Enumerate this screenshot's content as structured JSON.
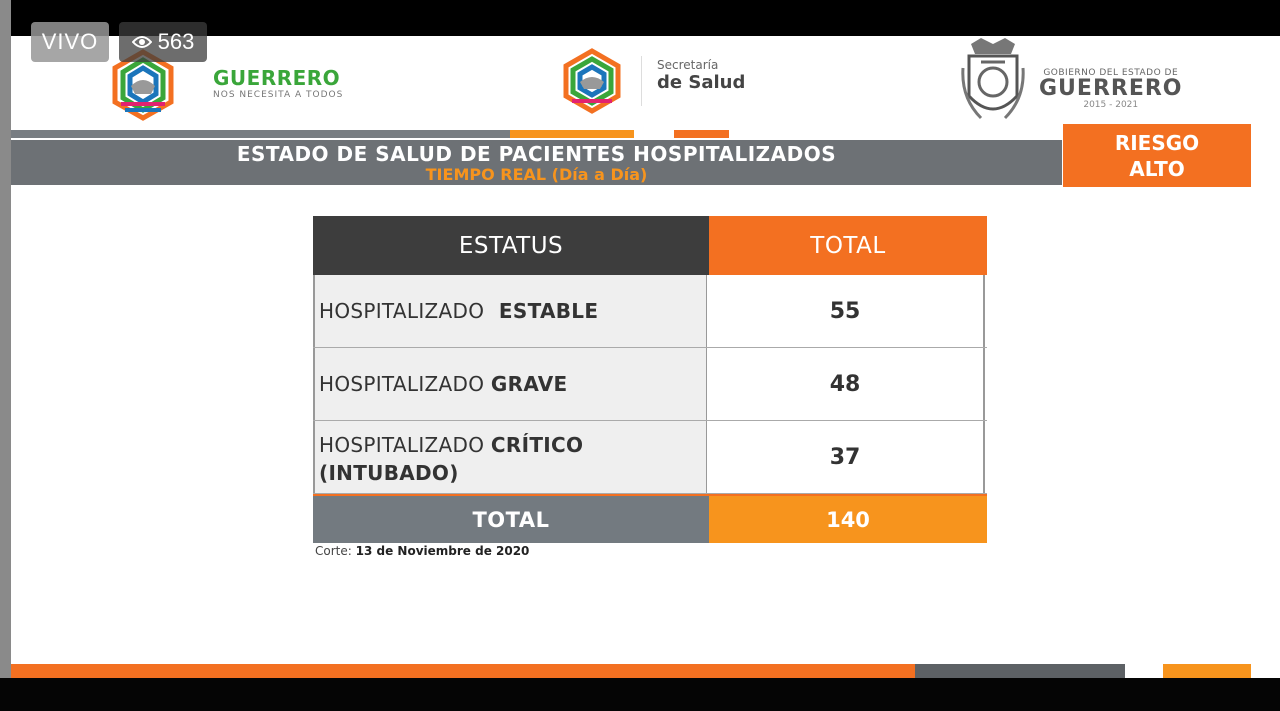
{
  "overlay": {
    "live_label": "VIVO",
    "viewer_count": "563"
  },
  "header": {
    "logo1_title": "GUERRERO",
    "logo1_tagline": "NOS NECESITA A TODOS",
    "logo2_line1": "Secretaría",
    "logo2_line2": "de Salud",
    "logo3_line1": "GOBIERNO DEL ESTADO DE",
    "logo3_line2": "GUERRERO",
    "logo3_line3": "2015 - 2021"
  },
  "title": {
    "main": "ESTADO DE SALUD DE PACIENTES HOSPITALIZADOS",
    "sub": "TIEMPO REAL (Día a Día)",
    "risk_line1": "RIESGO",
    "risk_line2": "ALTO"
  },
  "table": {
    "col_status": "ESTATUS",
    "col_total": "TOTAL",
    "rows": [
      {
        "prefix": "HOSPITALIZADO ",
        "strong": "ESTABLE",
        "value": "55"
      },
      {
        "prefix": "HOSPITALIZADO ",
        "strong": "GRAVE",
        "value": "48"
      },
      {
        "prefix": "HOSPITALIZADO ",
        "strong": "CRÍTICO (INTUBADO)",
        "value": "37"
      }
    ],
    "footer_label": "TOTAL",
    "footer_value": "140"
  },
  "cut": {
    "label": "Corte:",
    "date": "13 de Noviembre de 2020"
  },
  "colors": {
    "orange": "#f37021",
    "light_orange": "#f7941d",
    "dark_gray": "#3d3d3d",
    "gray": "#6d7175",
    "green": "#3aa63a"
  }
}
